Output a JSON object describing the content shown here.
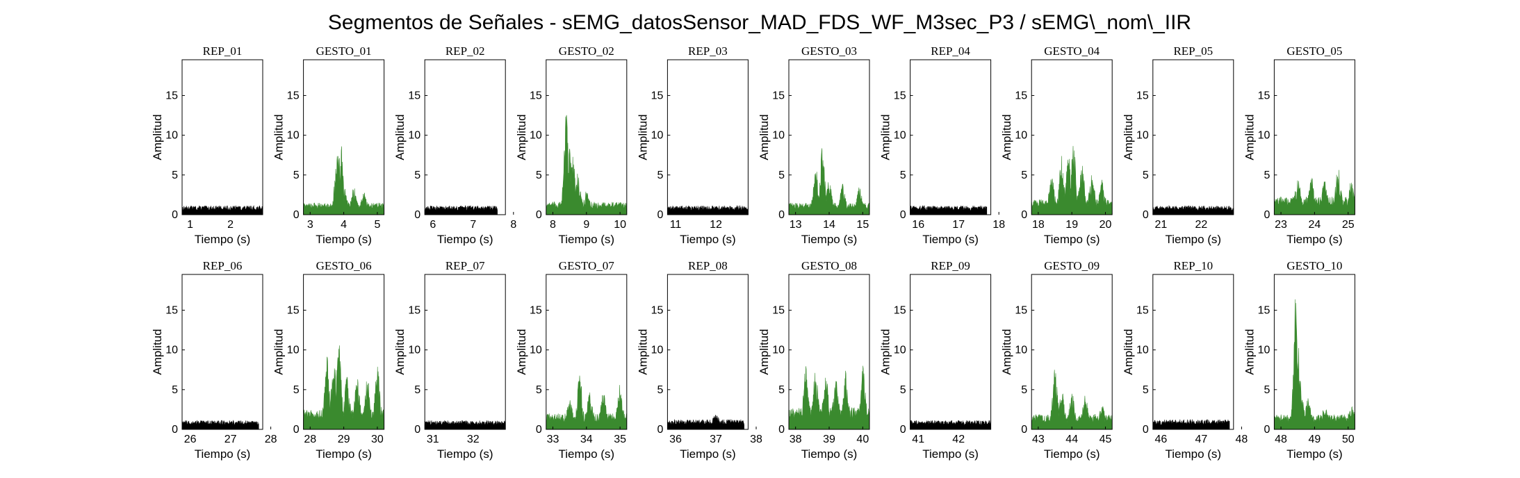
{
  "figure": {
    "title": "Segmentos de Señales - sEMG_datosSensor_MAD_FDS_WF_M3sec_P3 / sEMG\\_nom\\_IIR"
  },
  "colors": {
    "rep": "#000000",
    "gesto": "#3a8a2e",
    "axes": "#000000",
    "background": "#ffffff"
  },
  "chart_data": [
    {
      "type": "area",
      "title": "REP_01",
      "kind": "rep",
      "xlim": [
        0.8,
        2.8
      ],
      "xticks": [
        1,
        2
      ],
      "ylim": [
        0,
        19.5
      ],
      "yticks": [
        0,
        5,
        10,
        15
      ],
      "xlabel": "Tiempo (s)",
      "ylabel": "Amplitud",
      "signal_range": [
        0.8,
        2.8
      ],
      "baseline": 0.9,
      "peaks": []
    },
    {
      "type": "area",
      "title": "GESTO_01",
      "kind": "gesto",
      "xlim": [
        2.8,
        5.2
      ],
      "xticks": [
        3,
        4,
        5
      ],
      "ylim": [
        0,
        19.5
      ],
      "yticks": [
        0,
        5,
        10,
        15
      ],
      "xlabel": "Tiempo (s)",
      "ylabel": "Amplitud",
      "signal_range": [
        2.8,
        5.2
      ],
      "baseline": 1.2,
      "peaks": [
        [
          3.78,
          6.5
        ],
        [
          3.85,
          9.5
        ],
        [
          3.92,
          9.2
        ],
        [
          4.0,
          4.0
        ],
        [
          4.3,
          3.5
        ],
        [
          4.6,
          3.0
        ]
      ]
    },
    {
      "type": "area",
      "title": "REP_02",
      "kind": "rep",
      "xlim": [
        5.8,
        7.8
      ],
      "xticks": [
        6,
        7,
        8
      ],
      "ylim": [
        0,
        19.5
      ],
      "yticks": [
        0,
        5,
        10,
        15
      ],
      "xlabel": "Tiempo (s)",
      "ylabel": "Amplitud",
      "signal_range": [
        5.8,
        7.6
      ],
      "baseline": 0.9,
      "peaks": []
    },
    {
      "type": "area",
      "title": "GESTO_02",
      "kind": "gesto",
      "xlim": [
        7.8,
        10.2
      ],
      "xticks": [
        8,
        9,
        10
      ],
      "ylim": [
        0,
        19.5
      ],
      "yticks": [
        0,
        5,
        10,
        15
      ],
      "xlabel": "Tiempo (s)",
      "ylabel": "Amplitud",
      "signal_range": [
        7.8,
        10.2
      ],
      "baseline": 1.3,
      "peaks": [
        [
          8.4,
          13.3
        ],
        [
          8.5,
          9.0
        ],
        [
          8.6,
          7.5
        ],
        [
          8.75,
          5.5
        ],
        [
          9.0,
          3.0
        ]
      ]
    },
    {
      "type": "area",
      "title": "REP_03",
      "kind": "rep",
      "xlim": [
        10.8,
        12.8
      ],
      "xticks": [
        11,
        12
      ],
      "ylim": [
        0,
        19.5
      ],
      "yticks": [
        0,
        5,
        10,
        15
      ],
      "xlabel": "Tiempo (s)",
      "ylabel": "Amplitud",
      "signal_range": [
        10.8,
        12.8
      ],
      "baseline": 0.9,
      "peaks": []
    },
    {
      "type": "area",
      "title": "GESTO_03",
      "kind": "gesto",
      "xlim": [
        12.8,
        15.2
      ],
      "xticks": [
        13,
        14,
        15
      ],
      "ylim": [
        0,
        19.5
      ],
      "yticks": [
        0,
        5,
        10,
        15
      ],
      "xlabel": "Tiempo (s)",
      "ylabel": "Amplitud",
      "signal_range": [
        12.8,
        15.2
      ],
      "baseline": 1.2,
      "peaks": [
        [
          13.6,
          6.3
        ],
        [
          13.8,
          8.8
        ],
        [
          14.0,
          4.5
        ],
        [
          14.4,
          4.0
        ],
        [
          14.9,
          3.5
        ]
      ]
    },
    {
      "type": "area",
      "title": "REP_04",
      "kind": "rep",
      "xlim": [
        15.8,
        17.8
      ],
      "xticks": [
        16,
        17,
        18
      ],
      "ylim": [
        0,
        19.5
      ],
      "yticks": [
        0,
        5,
        10,
        15
      ],
      "xlabel": "Tiempo (s)",
      "ylabel": "Amplitud",
      "signal_range": [
        15.8,
        17.7
      ],
      "baseline": 0.9,
      "peaks": []
    },
    {
      "type": "area",
      "title": "GESTO_04",
      "kind": "gesto",
      "xlim": [
        17.8,
        20.2
      ],
      "xticks": [
        18,
        19,
        20
      ],
      "ylim": [
        0,
        19.5
      ],
      "yticks": [
        0,
        5,
        10,
        15
      ],
      "xlabel": "Tiempo (s)",
      "ylabel": "Amplitud",
      "signal_range": [
        17.8,
        20.2
      ],
      "baseline": 1.6,
      "peaks": [
        [
          18.4,
          5.0
        ],
        [
          18.7,
          7.5
        ],
        [
          18.9,
          8.0
        ],
        [
          19.05,
          9.3
        ],
        [
          19.3,
          7.0
        ],
        [
          19.6,
          5.5
        ],
        [
          19.9,
          4.5
        ]
      ]
    },
    {
      "type": "area",
      "title": "REP_05",
      "kind": "rep",
      "xlim": [
        20.8,
        22.8
      ],
      "xticks": [
        21,
        22
      ],
      "ylim": [
        0,
        19.5
      ],
      "yticks": [
        0,
        5,
        10,
        15
      ],
      "xlabel": "Tiempo (s)",
      "ylabel": "Amplitud",
      "signal_range": [
        20.8,
        22.8
      ],
      "baseline": 0.9,
      "peaks": []
    },
    {
      "type": "area",
      "title": "GESTO_05",
      "kind": "gesto",
      "xlim": [
        22.8,
        25.2
      ],
      "xticks": [
        23,
        24,
        25
      ],
      "ylim": [
        0,
        19.5
      ],
      "yticks": [
        0,
        5,
        10,
        15
      ],
      "xlabel": "Tiempo (s)",
      "ylabel": "Amplitud",
      "signal_range": [
        22.8,
        25.2
      ],
      "baseline": 1.8,
      "peaks": [
        [
          23.5,
          4.8
        ],
        [
          23.9,
          5.0
        ],
        [
          24.3,
          4.5
        ],
        [
          24.7,
          6.3
        ],
        [
          25.1,
          4.5
        ]
      ]
    },
    {
      "type": "area",
      "title": "REP_06",
      "kind": "rep",
      "xlim": [
        25.8,
        27.8
      ],
      "xticks": [
        26,
        27,
        28
      ],
      "ylim": [
        0,
        19.5
      ],
      "yticks": [
        0,
        5,
        10,
        15
      ],
      "xlabel": "Tiempo (s)",
      "ylabel": "Amplitud",
      "signal_range": [
        25.8,
        27.7
      ],
      "baseline": 0.9,
      "peaks": []
    },
    {
      "type": "area",
      "title": "GESTO_06",
      "kind": "gesto",
      "xlim": [
        27.8,
        30.2
      ],
      "xticks": [
        28,
        29,
        30
      ],
      "ylim": [
        0,
        19.5
      ],
      "yticks": [
        0,
        5,
        10,
        15
      ],
      "xlabel": "Tiempo (s)",
      "ylabel": "Amplitud",
      "signal_range": [
        27.8,
        30.2
      ],
      "baseline": 2.0,
      "peaks": [
        [
          28.5,
          9.2
        ],
        [
          28.7,
          9.0
        ],
        [
          28.85,
          11.6
        ],
        [
          29.1,
          7.0
        ],
        [
          29.4,
          6.5
        ],
        [
          29.7,
          6.8
        ],
        [
          30.0,
          8.2
        ]
      ]
    },
    {
      "type": "area",
      "title": "REP_07",
      "kind": "rep",
      "xlim": [
        30.8,
        32.8
      ],
      "xticks": [
        31,
        32
      ],
      "ylim": [
        0,
        19.5
      ],
      "yticks": [
        0,
        5,
        10,
        15
      ],
      "xlabel": "Tiempo (s)",
      "ylabel": "Amplitud",
      "signal_range": [
        30.8,
        32.8
      ],
      "baseline": 0.9,
      "peaks": []
    },
    {
      "type": "area",
      "title": "GESTO_07",
      "kind": "gesto",
      "xlim": [
        32.8,
        35.2
      ],
      "xticks": [
        33,
        34,
        35
      ],
      "ylim": [
        0,
        19.5
      ],
      "yticks": [
        0,
        5,
        10,
        15
      ],
      "xlabel": "Tiempo (s)",
      "ylabel": "Amplitud",
      "signal_range": [
        32.8,
        35.2
      ],
      "baseline": 1.6,
      "peaks": [
        [
          33.5,
          4.0
        ],
        [
          33.8,
          7.2
        ],
        [
          34.1,
          5.0
        ],
        [
          34.5,
          4.8
        ],
        [
          35.0,
          5.8
        ]
      ]
    },
    {
      "type": "area",
      "title": "REP_08",
      "kind": "rep",
      "xlim": [
        35.8,
        37.8
      ],
      "xticks": [
        36,
        37,
        38
      ],
      "ylim": [
        0,
        19.5
      ],
      "yticks": [
        0,
        5,
        10,
        15
      ],
      "xlabel": "Tiempo (s)",
      "ylabel": "Amplitud",
      "signal_range": [
        35.8,
        37.7
      ],
      "baseline": 1.0,
      "peaks": [
        [
          37.0,
          1.9
        ]
      ]
    },
    {
      "type": "area",
      "title": "GESTO_08",
      "kind": "gesto",
      "xlim": [
        37.8,
        40.2
      ],
      "xticks": [
        38,
        39,
        40
      ],
      "ylim": [
        0,
        19.5
      ],
      "yticks": [
        0,
        5,
        10,
        15
      ],
      "xlabel": "Tiempo (s)",
      "ylabel": "Amplitud",
      "signal_range": [
        37.8,
        40.2
      ],
      "baseline": 2.2,
      "peaks": [
        [
          38.3,
          8.4
        ],
        [
          38.6,
          8.0
        ],
        [
          38.9,
          7.0
        ],
        [
          39.2,
          6.5
        ],
        [
          39.5,
          7.5
        ],
        [
          40.0,
          8.2
        ]
      ]
    },
    {
      "type": "area",
      "title": "REP_09",
      "kind": "rep",
      "xlim": [
        40.8,
        42.8
      ],
      "xticks": [
        41,
        42
      ],
      "ylim": [
        0,
        19.5
      ],
      "yticks": [
        0,
        5,
        10,
        15
      ],
      "xlabel": "Tiempo (s)",
      "ylabel": "Amplitud",
      "signal_range": [
        40.8,
        42.8
      ],
      "baseline": 0.9,
      "peaks": []
    },
    {
      "type": "area",
      "title": "GESTO_09",
      "kind": "gesto",
      "xlim": [
        42.8,
        45.2
      ],
      "xticks": [
        43,
        44,
        45
      ],
      "ylim": [
        0,
        19.5
      ],
      "yticks": [
        0,
        5,
        10,
        15
      ],
      "xlabel": "Tiempo (s)",
      "ylabel": "Amplitud",
      "signal_range": [
        42.8,
        45.2
      ],
      "baseline": 1.5,
      "peaks": [
        [
          43.5,
          8.0
        ],
        [
          43.7,
          5.0
        ],
        [
          44.0,
          4.8
        ],
        [
          44.4,
          4.5
        ],
        [
          44.9,
          3.2
        ]
      ]
    },
    {
      "type": "area",
      "title": "REP_10",
      "kind": "rep",
      "xlim": [
        45.8,
        47.8
      ],
      "xticks": [
        46,
        47,
        48
      ],
      "ylim": [
        0,
        19.5
      ],
      "yticks": [
        0,
        5,
        10,
        15
      ],
      "xlabel": "Tiempo (s)",
      "ylabel": "Amplitud",
      "signal_range": [
        45.8,
        47.7
      ],
      "baseline": 1.0,
      "peaks": []
    },
    {
      "type": "area",
      "title": "GESTO_10",
      "kind": "gesto",
      "xlim": [
        47.8,
        50.2
      ],
      "xticks": [
        48,
        49,
        50
      ],
      "ylim": [
        0,
        19.5
      ],
      "yticks": [
        0,
        5,
        10,
        15
      ],
      "xlabel": "Tiempo (s)",
      "ylabel": "Amplitud",
      "signal_range": [
        47.8,
        50.2
      ],
      "baseline": 1.5,
      "peaks": [
        [
          48.45,
          19.0
        ],
        [
          48.5,
          12.0
        ],
        [
          48.6,
          6.0
        ],
        [
          48.8,
          4.0
        ],
        [
          49.3,
          3.0
        ],
        [
          50.1,
          3.2
        ]
      ]
    }
  ]
}
